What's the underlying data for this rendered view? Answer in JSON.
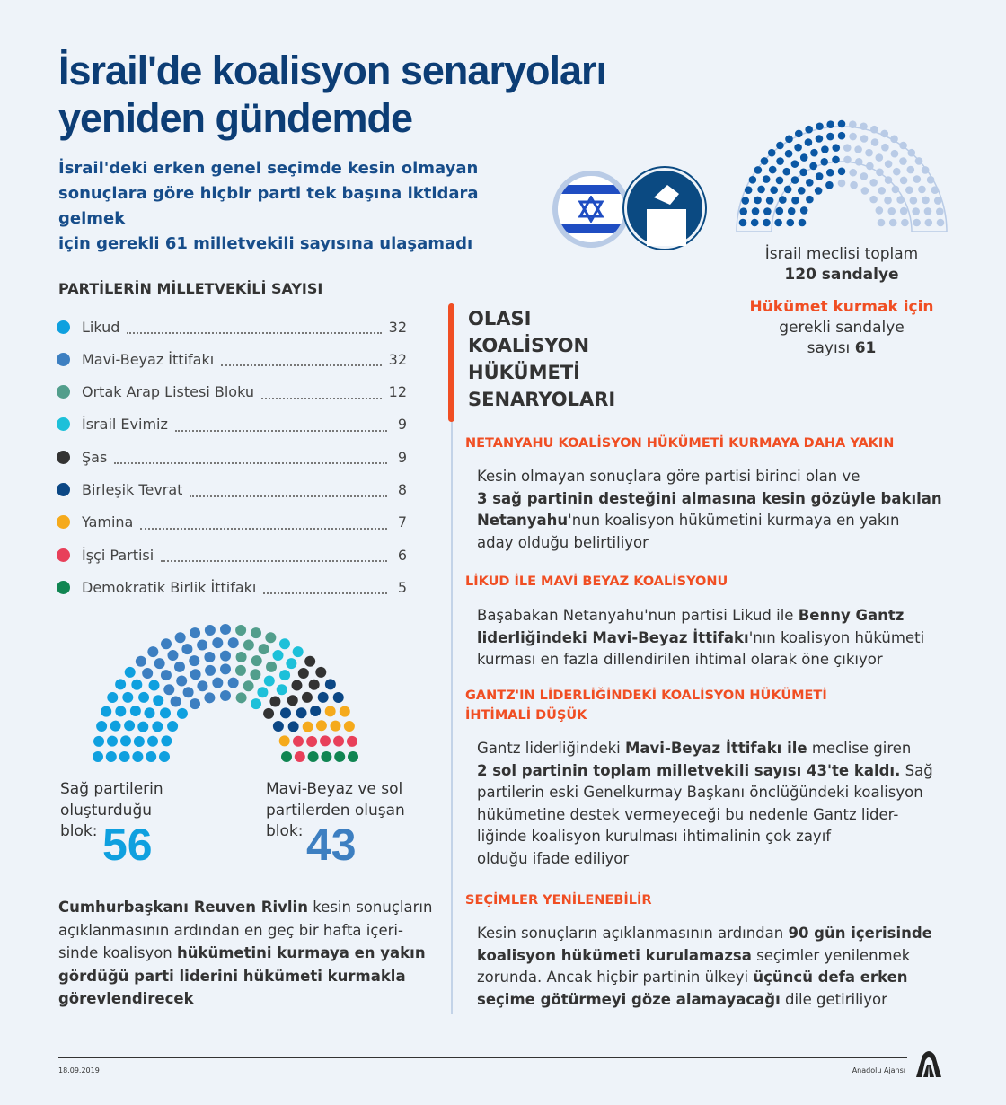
{
  "header": {
    "title_lines": [
      "İsrail'de koalisyon senaryoları",
      "yeniden gündemde"
    ],
    "subtitle_lines": [
      "İsrail'deki erken genel seçimde kesin olmayan",
      "sonuçlara göre hiçbir parti tek başına iktidara gelmek",
      "için gerekli 61 milletvekili sayısına ulaşamadı"
    ]
  },
  "colors": {
    "accent": "#f04e23",
    "title": "#0c3d75",
    "majority_dark": "#0a57a4",
    "majority_light": "#b9cbe6"
  },
  "parliament": {
    "total_seats": 120,
    "majority": 61,
    "caption_line1": "İsrail meclisi toplam",
    "caption_line2": "120 sandalye",
    "req_red": "Hükümet kurmak için",
    "req_line2": "gerekli sandalye",
    "req_line3_pre": "sayısı ",
    "req_line3_bold": "61"
  },
  "parties": {
    "title": "PARTİLERİN MİLLETVEKİLİ SAYISI",
    "items": [
      {
        "name": "Likud",
        "seats": 32,
        "color": "#0fa0df"
      },
      {
        "name": "Mavi-Beyaz İttifakı",
        "seats": 32,
        "color": "#3d7fc1"
      },
      {
        "name": "Ortak Arap Listesi Bloku",
        "seats": 12,
        "color": "#529e8c"
      },
      {
        "name": "İsrail Evimiz",
        "seats": 9,
        "color": "#1dc0d9"
      },
      {
        "name": "Şas",
        "seats": 9,
        "color": "#333333"
      },
      {
        "name": "Birleşik Tevrat",
        "seats": 8,
        "color": "#0b4785"
      },
      {
        "name": "Yamina",
        "seats": 7,
        "color": "#f5aa1c"
      },
      {
        "name": "İşçi Partisi",
        "seats": 6,
        "color": "#e8405a"
      },
      {
        "name": "Demokratik Birlik İttifakı",
        "seats": 5,
        "color": "#108552"
      }
    ]
  },
  "blocs": {
    "right": {
      "lines": [
        "Sağ partilerin",
        "oluşturduğu",
        "blok:"
      ],
      "value": "56",
      "color": "#0fa0df"
    },
    "left": {
      "lines": [
        "Mavi-Beyaz ve sol",
        "partilerden oluşan",
        "blok:"
      ],
      "value": "43",
      "color": "#3d7fc1"
    }
  },
  "left_paragraph": [
    [
      [
        "Cumhurbaşkanı Reuven Rivlin",
        1
      ],
      [
        " kesin sonuçların",
        0
      ]
    ],
    [
      [
        "açıklanmasının ardından en geç bir hafta içeri-",
        0
      ]
    ],
    [
      [
        "sinde koalisyon ",
        0
      ],
      [
        "hükümetini kurmaya en yakın",
        1
      ]
    ],
    [
      [
        "gördüğü parti liderini hükümeti kurmakla",
        1
      ]
    ],
    [
      [
        "görevlendirecek",
        1
      ]
    ]
  ],
  "scenarios": {
    "title_lines": [
      "OLASI",
      "KOALİSYON",
      "HÜKÜMETİ",
      "SENARYOLARI"
    ],
    "items": [
      {
        "heading": [
          "NETANYAHU KOALİSYON HÜKÜMETİ KURMAYA DAHA YAKIN"
        ],
        "body": [
          [
            [
              "Kesin olmayan sonuçlara göre partisi birinci olan ve",
              0
            ]
          ],
          [
            [
              "3 sağ partinin desteğini almasına kesin gözüyle bakılan",
              1
            ]
          ],
          [
            [
              "Netanyahu",
              1
            ],
            [
              "'nun koalisyon hükümetini kurmaya en yakın",
              0
            ]
          ],
          [
            [
              "aday olduğu belirtiliyor",
              0
            ]
          ]
        ]
      },
      {
        "heading": [
          "LİKUD İLE MAVİ BEYAZ KOALİSYONU"
        ],
        "body": [
          [
            [
              "Başabakan Netanyahu'nun partisi Likud ile ",
              0
            ],
            [
              "Benny Gantz",
              1
            ]
          ],
          [
            [
              "liderliğindeki Mavi-Beyaz İttifakı",
              1
            ],
            [
              "'nın koalisyon hükümeti",
              0
            ]
          ],
          [
            [
              "kurması en fazla dillendirilen ihtimal olarak öne çıkıyor",
              0
            ]
          ]
        ]
      },
      {
        "heading": [
          "GANTZ'IN LİDERLİĞİNDEKİ KOALİSYON HÜKÜMETİ",
          "İHTİMALİ DÜŞÜK"
        ],
        "body": [
          [
            [
              "Gantz liderliğindeki ",
              0
            ],
            [
              "Mavi-Beyaz İttifakı ile",
              1
            ],
            [
              " meclise giren",
              0
            ]
          ],
          [
            [
              "2 sol partinin toplam milletvekili sayısı 43'te kaldı.",
              1
            ],
            [
              " Sağ",
              0
            ]
          ],
          [
            [
              "partilerin eski Genelkurmay Başkanı önclüğündeki koalisyon",
              0
            ]
          ],
          [
            [
              "hükümetine destek vermeyeceği bu nedenle Gantz lider-",
              0
            ]
          ],
          [
            [
              "liğinde koalisyon kurulması ihtimalinin çok zayıf",
              0
            ]
          ],
          [
            [
              "olduğu ifade ediliyor",
              0
            ]
          ]
        ]
      },
      {
        "heading": [
          "SEÇİMLER YENİLENEBİLİR"
        ],
        "body": [
          [
            [
              "Kesin sonuçların açıklanmasının ardından ",
              0
            ],
            [
              "90 gün içerisinde",
              1
            ]
          ],
          [
            [
              "koalisyon hükümeti kurulamazsa",
              1
            ],
            [
              " seçimler yenilenmek",
              0
            ]
          ],
          [
            [
              "zorunda. Ancak hiçbir partinin ülkeyi ",
              0
            ],
            [
              "üçüncü defa erken",
              1
            ]
          ],
          [
            [
              "seçime götürmeyi göze alamayacağı",
              1
            ],
            [
              " dile getiriliyor",
              0
            ]
          ]
        ]
      }
    ]
  },
  "footer": {
    "date": "18.09.2019",
    "agency": "Anadolu Ajansı",
    "logo_text": "AA"
  }
}
